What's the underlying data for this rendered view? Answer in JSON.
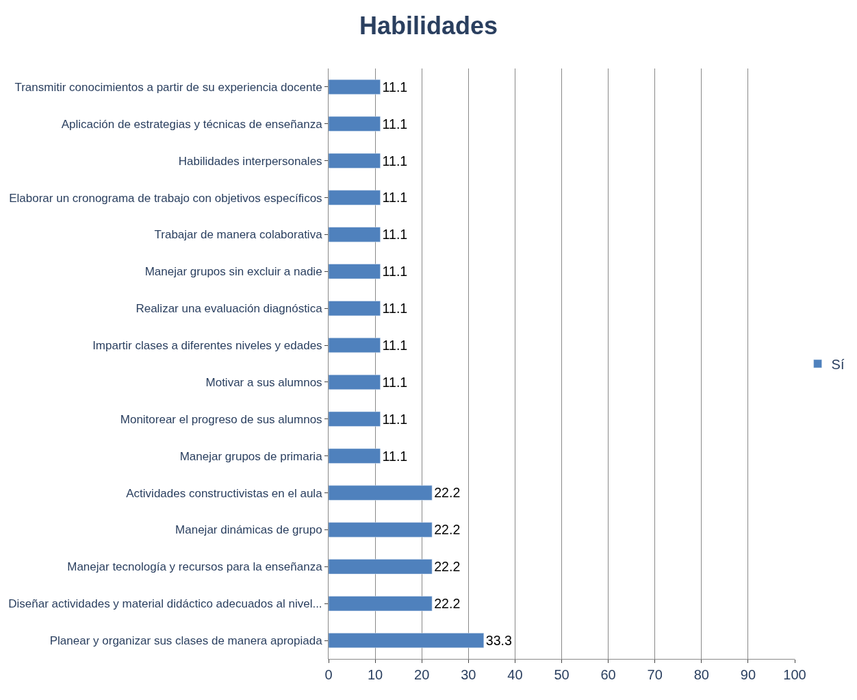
{
  "chart_data": {
    "type": "bar",
    "orientation": "horizontal",
    "title": "Habilidades",
    "categories": [
      "Transmitir conocimientos a partir de su experiencia docente",
      "Aplicación de estrategias y técnicas de enseñanza",
      "Habilidades interpersonales",
      "Elaborar un cronograma de trabajo con objetivos específicos",
      "Trabajar de manera colaborativa",
      "Manejar grupos sin excluir a nadie",
      "Realizar una evaluación diagnóstica",
      "Impartir clases a diferentes niveles y edades",
      "Motivar a sus alumnos",
      "Monitorear el progreso de sus alumnos",
      "Manejar grupos de primaria",
      "Actividades constructivistas en el aula",
      "Manejar dinámicas de grupo",
      "Manejar tecnología y recursos para la enseñanza",
      "Diseñar actividades y material didáctico adecuados al nivel...",
      "Planear y organizar sus clases de manera apropiada"
    ],
    "series": [
      {
        "name": "Sí",
        "color": "#4f81bd",
        "values": [
          11.1,
          11.1,
          11.1,
          11.1,
          11.1,
          11.1,
          11.1,
          11.1,
          11.1,
          11.1,
          11.1,
          22.2,
          22.2,
          22.2,
          22.2,
          33.3
        ]
      }
    ],
    "xlim": [
      0,
      100
    ],
    "xticks": [
      0,
      10,
      20,
      30,
      40,
      50,
      60,
      70,
      80,
      90,
      100
    ],
    "grid": "x",
    "legend": "right",
    "data_labels": true
  }
}
